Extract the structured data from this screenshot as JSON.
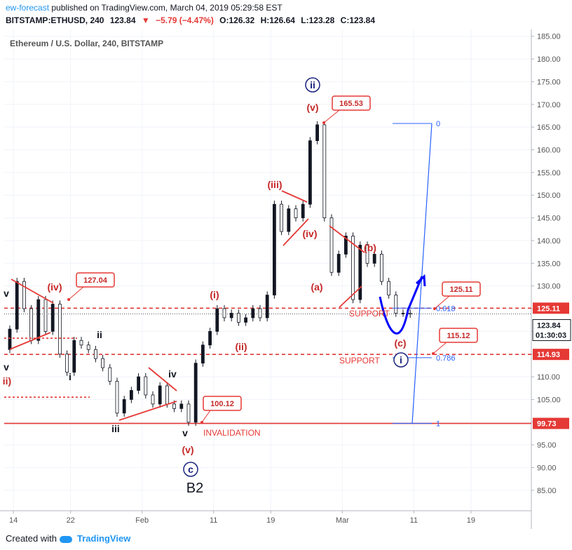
{
  "header": {
    "author": "ew-forecast",
    "published_text": "published on TradingView.com, March 04, 2019 05:29:58 EST",
    "symbol": "BITSTAMP:ETHUSD, 240",
    "last": "123.84",
    "change": "−5.79 (−4.47%)",
    "o": "O:126.32",
    "h": "H:126.64",
    "l": "L:123.28",
    "c": "C:123.84"
  },
  "footer": {
    "created_with": "Created with",
    "brand": "TradingView"
  },
  "chart_data": {
    "type": "candlestick",
    "title": "Ethereum / U.S. Dollar, 240, BITSTAMP",
    "ylim": [
      80.5,
      186.5
    ],
    "yticks": [
      85,
      90,
      95,
      100,
      105,
      110,
      115,
      120,
      125,
      130,
      135,
      140,
      145,
      150,
      155,
      160,
      165,
      170,
      175,
      180,
      185
    ],
    "xlim": [
      0,
      57
    ],
    "xticks": [
      {
        "x": 0.5,
        "label": "14"
      },
      {
        "x": 8.5,
        "label": "22"
      },
      {
        "x": 18.5,
        "label": "Feb"
      },
      {
        "x": 28.5,
        "label": "11"
      },
      {
        "x": 36.5,
        "label": "19"
      },
      {
        "x": 46.5,
        "label": "Mar"
      },
      {
        "x": 56.5,
        "label": "11"
      },
      {
        "x": 64.5,
        "label": "19"
      }
    ],
    "series": [
      {
        "values": [
          [
            116,
            120.5
          ],
          [
            120.5,
            131
          ],
          [
            131,
            125
          ],
          [
            125,
            118
          ],
          [
            118,
            127
          ],
          [
            127,
            120
          ],
          [
            120,
            126
          ],
          [
            126,
            115
          ],
          [
            115,
            111
          ],
          [
            111,
            118
          ],
          [
            118,
            117
          ],
          [
            117,
            116
          ],
          [
            116,
            114
          ],
          [
            114,
            112
          ],
          [
            112,
            109
          ],
          [
            109,
            102
          ],
          [
            102,
            105
          ],
          [
            105,
            107
          ],
          [
            107,
            110
          ],
          [
            110,
            106
          ],
          [
            106,
            104
          ],
          [
            104,
            108
          ],
          [
            108,
            104
          ],
          [
            104,
            103
          ],
          [
            103,
            104
          ],
          [
            104,
            100
          ],
          [
            100,
            113
          ],
          [
            113,
            117
          ],
          [
            117,
            120
          ],
          [
            120,
            125
          ],
          [
            125,
            123
          ],
          [
            123,
            124
          ],
          [
            124,
            122
          ],
          [
            122,
            123
          ],
          [
            123,
            125
          ],
          [
            125,
            123
          ],
          [
            123,
            128
          ],
          [
            128,
            148
          ],
          [
            148,
            142
          ],
          [
            142,
            147
          ],
          [
            147,
            145
          ],
          [
            145,
            148
          ],
          [
            148,
            162
          ],
          [
            162,
            165.5
          ],
          [
            165.5,
            145
          ],
          [
            145,
            133
          ],
          [
            133,
            137
          ],
          [
            137,
            141
          ],
          [
            141,
            127
          ],
          [
            127,
            139
          ],
          [
            139,
            135
          ],
          [
            135,
            137
          ],
          [
            137,
            131
          ],
          [
            131,
            128
          ],
          [
            128,
            124
          ],
          [
            124,
            124
          ],
          [
            124,
            123.8
          ]
        ]
      }
    ],
    "price_lines": [
      {
        "value": 125.11,
        "label": "125.11",
        "style": "dashed",
        "color": "#e53935"
      },
      {
        "value": 114.93,
        "label": "114.93",
        "style": "dashed",
        "color": "#e53935"
      },
      {
        "value": 99.73,
        "label": "99.73",
        "style": "solid",
        "color": "#e53935"
      }
    ],
    "last_price": {
      "value": 123.84,
      "label": "123.84",
      "countdown": "01:30:03"
    },
    "fib": {
      "levels": [
        {
          "label": "0",
          "price": 165.8
        },
        {
          "label": "0.618",
          "price": 125.11
        },
        {
          "label": "0.786",
          "price": 114.2
        },
        {
          "label": "1",
          "price": 99.73
        }
      ]
    },
    "callouts": [
      {
        "label": "127.04",
        "price": 127.04
      },
      {
        "label": "165.53",
        "price": 165.53
      },
      {
        "label": "125.11",
        "price": 125.11
      },
      {
        "label": "115.12",
        "price": 115.12
      },
      {
        "label": "100.12",
        "price": 100.12
      }
    ],
    "wave_labels": [
      "(iv)",
      "v",
      "ii",
      "i",
      "iii",
      "iv",
      "v",
      "(v)",
      "(i)",
      "(ii)",
      "(iii)",
      "(iv)",
      "(v)",
      "(a)",
      "(b)",
      "(c)",
      "i",
      "ii",
      "c",
      "B2",
      "ii)",
      "v"
    ],
    "annotations": [
      "SUPPORT",
      "SUPPORT",
      "INVALIDATION"
    ],
    "colors": {
      "up": "#131722",
      "wave_red": "#c62828",
      "line_red": "#e53935",
      "fib_blue": "#2962ff",
      "circle_blue": "#1a237e",
      "projection": "#0000ff"
    }
  }
}
